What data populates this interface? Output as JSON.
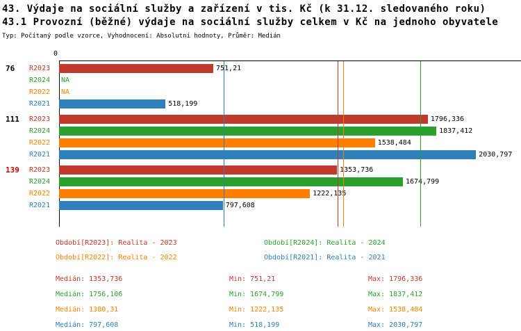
{
  "title1": "43. Výdaje na sociální služby a zařízení v tis. Kč (k 31.12. sledovaného roku)",
  "title2": "43.1 Provozní (běžné) výdaje na sociální služby celkem v Kč na jednoho obyvatele",
  "subtitle": "Typ: Počítaný podle vzorce, Vyhodnocení: Absolutní hodnoty, Průměr: Medián",
  "colors": {
    "r2023": "#c0392b",
    "r2024": "#2ca02c",
    "r2022": "#ff8000",
    "r2021": "#2e7fba",
    "group_highlight": "#cc0000",
    "group_normal": "#000000",
    "axis": "#000000"
  },
  "chart_data": {
    "type": "bar",
    "orientation": "horizontal",
    "x_origin_label": "0",
    "xlim": [
      0,
      2250
    ],
    "grid": false,
    "legend_position": "bottom",
    "categories": [
      "76",
      "111",
      "139"
    ],
    "series_order": [
      "R2023",
      "R2024",
      "R2022",
      "R2021"
    ],
    "groups": [
      {
        "label": "76",
        "highlight": false,
        "bars": [
          {
            "series": "R2023",
            "value": 751.21,
            "display": "751,21",
            "color_key": "r2023"
          },
          {
            "series": "R2024",
            "value": null,
            "display": "NA",
            "color_key": "r2024"
          },
          {
            "series": "R2022",
            "value": null,
            "display": "NA",
            "color_key": "r2022"
          },
          {
            "series": "R2021",
            "value": 518.199,
            "display": "518,199",
            "color_key": "r2021"
          }
        ]
      },
      {
        "label": "111",
        "highlight": false,
        "bars": [
          {
            "series": "R2023",
            "value": 1796.336,
            "display": "1796,336",
            "color_key": "r2023"
          },
          {
            "series": "R2024",
            "value": 1837.412,
            "display": "1837,412",
            "color_key": "r2024"
          },
          {
            "series": "R2022",
            "value": 1538.484,
            "display": "1538,484",
            "color_key": "r2022"
          },
          {
            "series": "R2021",
            "value": 2030.797,
            "display": "2030,797",
            "color_key": "r2021"
          }
        ]
      },
      {
        "label": "139",
        "highlight": true,
        "bars": [
          {
            "series": "R2023",
            "value": 1353.736,
            "display": "1353,736",
            "color_key": "r2023"
          },
          {
            "series": "R2024",
            "value": 1674.799,
            "display": "1674,799",
            "color_key": "r2024"
          },
          {
            "series": "R2022",
            "value": 1222.135,
            "display": "1222,135",
            "color_key": "r2022"
          },
          {
            "series": "R2021",
            "value": 797.608,
            "display": "797,608",
            "color_key": "r2021"
          }
        ]
      }
    ],
    "median_lines": [
      {
        "value": 1353.736,
        "color_key": "r2023"
      },
      {
        "value": 1756.106,
        "color_key": "r2024"
      },
      {
        "value": 1380.31,
        "color_key": "r2022"
      },
      {
        "value": 797.608,
        "color_key": "r2021"
      }
    ]
  },
  "legend": {
    "rows": [
      [
        {
          "label": "Období[R2023]: Realita - 2023",
          "color_key": "r2023"
        },
        {
          "label": "Období[R2024]: Realita - 2024",
          "color_key": "r2024"
        }
      ],
      [
        {
          "label": "Období[R2022]: Realita - 2022",
          "color_key": "r2022"
        },
        {
          "label": "Období[R2021]: Realita - 2021",
          "color_key": "r2021"
        }
      ]
    ]
  },
  "stats": [
    {
      "color_key": "r2023",
      "median_label": "Medián:",
      "median": "1353,736",
      "min_label": "Min:",
      "min": "751,21",
      "max_label": "Max:",
      "max": "1796,336"
    },
    {
      "color_key": "r2024",
      "median_label": "Medián:",
      "median": "1756,106",
      "min_label": "Min:",
      "min": "1674,799",
      "max_label": "Max:",
      "max": "1837,412"
    },
    {
      "color_key": "r2022",
      "median_label": "Medián:",
      "median": "1380,31",
      "min_label": "Min:",
      "min": "1222,135",
      "max_label": "Max:",
      "max": "1538,484"
    },
    {
      "color_key": "r2021",
      "median_label": "Medián:",
      "median": "797,608",
      "min_label": "Min:",
      "min": "518,199",
      "max_label": "Max:",
      "max": "2030,797"
    }
  ]
}
